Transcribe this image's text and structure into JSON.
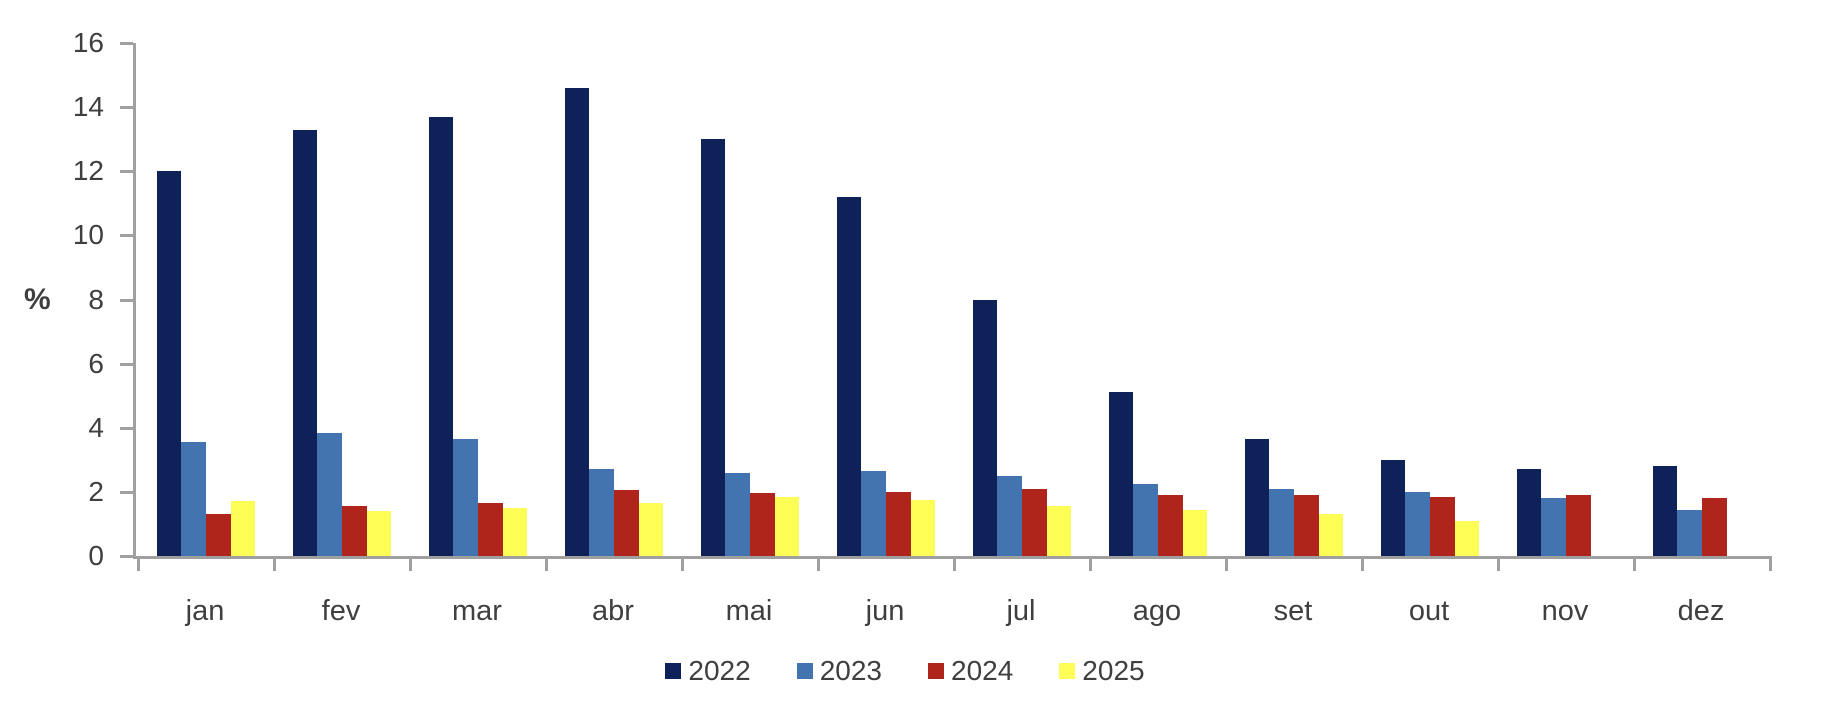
{
  "chart_data": {
    "type": "bar",
    "title": "",
    "xlabel": "",
    "ylabel": "%",
    "categories": [
      "jan",
      "fev",
      "mar",
      "abr",
      "mai",
      "jun",
      "jul",
      "ago",
      "set",
      "out",
      "nov",
      "dez"
    ],
    "series": [
      {
        "name": "2022",
        "color": "#0E2159",
        "values": [
          12.0,
          13.3,
          13.7,
          14.6,
          13.0,
          11.2,
          8.0,
          5.1,
          3.65,
          3.0,
          2.7,
          2.8
        ]
      },
      {
        "name": "2023",
        "color": "#4374AF",
        "values": [
          3.55,
          3.85,
          3.65,
          2.7,
          2.6,
          2.65,
          2.5,
          2.25,
          2.1,
          2.0,
          1.8,
          1.45
        ]
      },
      {
        "name": "2024",
        "color": "#B0251B",
        "values": [
          1.3,
          1.55,
          1.65,
          2.05,
          1.95,
          2.0,
          2.1,
          1.9,
          1.9,
          1.85,
          1.9,
          1.8
        ]
      },
      {
        "name": "2025",
        "color": "#FDFF56",
        "values": [
          1.7,
          1.4,
          1.5,
          1.65,
          1.85,
          1.75,
          1.55,
          1.45,
          1.3,
          1.1,
          null,
          null
        ]
      }
    ],
    "y_axis": {
      "min": 0,
      "max": 16,
      "tick_step": 2,
      "tick_labels": [
        "0",
        "2",
        "4",
        "6",
        "8",
        "10",
        "12",
        "14",
        "16"
      ]
    },
    "grid": false,
    "legend_position": "bottom",
    "axis_color": "#A0A0A0",
    "text_color": "#3F3F3F"
  }
}
